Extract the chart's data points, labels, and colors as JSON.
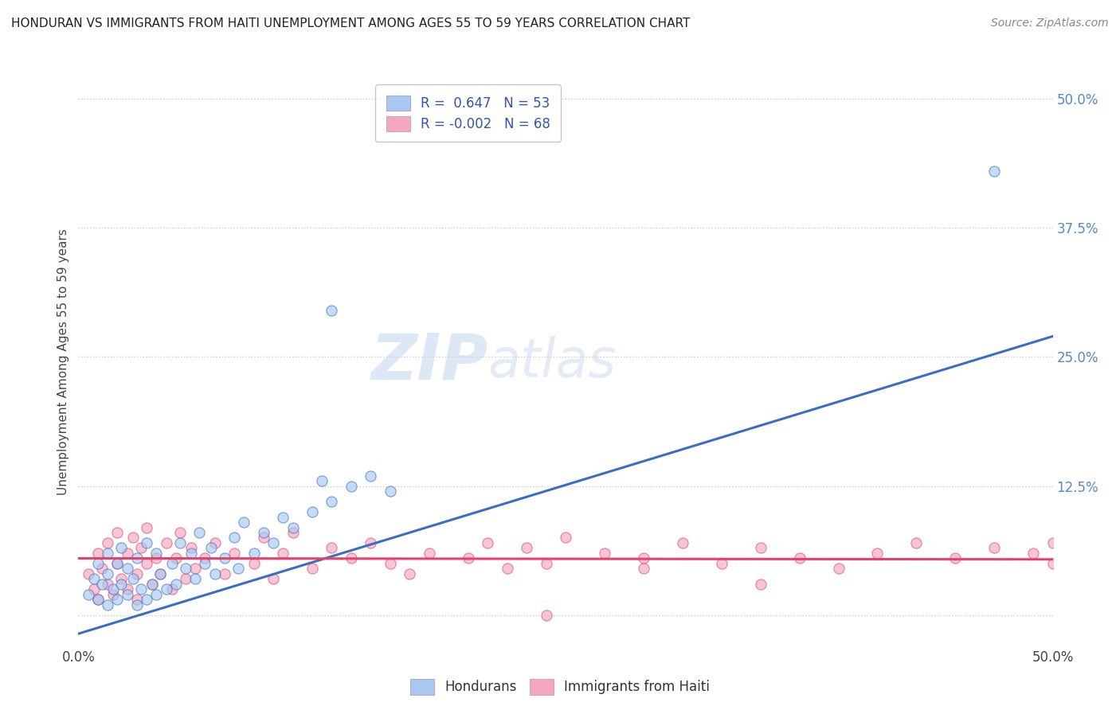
{
  "title": "HONDURAN VS IMMIGRANTS FROM HAITI UNEMPLOYMENT AMONG AGES 55 TO 59 YEARS CORRELATION CHART",
  "source": "Source: ZipAtlas.com",
  "ylabel": "Unemployment Among Ages 55 to 59 years",
  "xlim": [
    0.0,
    0.5
  ],
  "ylim": [
    -0.03,
    0.52
  ],
  "xticks": [
    0.0,
    0.125,
    0.25,
    0.375,
    0.5
  ],
  "xticklabels": [
    "0.0%",
    "",
    "",
    "",
    "50.0%"
  ],
  "ytick_positions": [
    0.0,
    0.125,
    0.25,
    0.375,
    0.5
  ],
  "ytick_labels": [
    "",
    "12.5%",
    "25.0%",
    "37.5%",
    "50.0%"
  ],
  "blue_R": 0.647,
  "blue_N": 53,
  "pink_R": -0.002,
  "pink_N": 68,
  "blue_color": "#a8c8f0",
  "pink_color": "#f4a8c0",
  "blue_line_color": "#3a6ec4",
  "pink_line_color": "#e8406a",
  "blue_line_x": [
    0.0,
    0.5
  ],
  "blue_line_y": [
    -0.018,
    0.27
  ],
  "pink_line_x": [
    0.0,
    0.5
  ],
  "pink_line_y": [
    0.055,
    0.054
  ],
  "background_color": "#ffffff",
  "grid_color": "#cccccc",
  "blue_scatter_x": [
    0.005,
    0.008,
    0.01,
    0.01,
    0.012,
    0.015,
    0.015,
    0.015,
    0.018,
    0.02,
    0.02,
    0.022,
    0.022,
    0.025,
    0.025,
    0.028,
    0.03,
    0.03,
    0.032,
    0.035,
    0.035,
    0.038,
    0.04,
    0.04,
    0.042,
    0.045,
    0.048,
    0.05,
    0.052,
    0.055,
    0.058,
    0.06,
    0.062,
    0.065,
    0.068,
    0.07,
    0.075,
    0.08,
    0.082,
    0.085,
    0.09,
    0.095,
    0.1,
    0.105,
    0.11,
    0.12,
    0.125,
    0.13,
    0.14,
    0.15,
    0.16,
    0.47,
    0.13
  ],
  "blue_scatter_y": [
    0.02,
    0.035,
    0.015,
    0.05,
    0.03,
    0.01,
    0.04,
    0.06,
    0.025,
    0.015,
    0.05,
    0.03,
    0.065,
    0.02,
    0.045,
    0.035,
    0.01,
    0.055,
    0.025,
    0.015,
    0.07,
    0.03,
    0.02,
    0.06,
    0.04,
    0.025,
    0.05,
    0.03,
    0.07,
    0.045,
    0.06,
    0.035,
    0.08,
    0.05,
    0.065,
    0.04,
    0.055,
    0.075,
    0.045,
    0.09,
    0.06,
    0.08,
    0.07,
    0.095,
    0.085,
    0.1,
    0.13,
    0.11,
    0.125,
    0.135,
    0.12,
    0.43,
    0.295
  ],
  "pink_scatter_x": [
    0.005,
    0.008,
    0.01,
    0.01,
    0.012,
    0.015,
    0.015,
    0.018,
    0.02,
    0.02,
    0.022,
    0.025,
    0.025,
    0.028,
    0.03,
    0.03,
    0.032,
    0.035,
    0.035,
    0.038,
    0.04,
    0.042,
    0.045,
    0.048,
    0.05,
    0.052,
    0.055,
    0.058,
    0.06,
    0.065,
    0.07,
    0.075,
    0.08,
    0.09,
    0.095,
    0.1,
    0.105,
    0.11,
    0.12,
    0.13,
    0.14,
    0.15,
    0.16,
    0.17,
    0.18,
    0.2,
    0.21,
    0.22,
    0.23,
    0.24,
    0.25,
    0.27,
    0.29,
    0.31,
    0.33,
    0.35,
    0.37,
    0.39,
    0.41,
    0.43,
    0.45,
    0.47,
    0.49,
    0.5,
    0.5,
    0.24,
    0.29,
    0.35
  ],
  "pink_scatter_y": [
    0.04,
    0.025,
    0.06,
    0.015,
    0.045,
    0.03,
    0.07,
    0.02,
    0.05,
    0.08,
    0.035,
    0.06,
    0.025,
    0.075,
    0.04,
    0.015,
    0.065,
    0.05,
    0.085,
    0.03,
    0.055,
    0.04,
    0.07,
    0.025,
    0.055,
    0.08,
    0.035,
    0.065,
    0.045,
    0.055,
    0.07,
    0.04,
    0.06,
    0.05,
    0.075,
    0.035,
    0.06,
    0.08,
    0.045,
    0.065,
    0.055,
    0.07,
    0.05,
    0.04,
    0.06,
    0.055,
    0.07,
    0.045,
    0.065,
    0.05,
    0.075,
    0.06,
    0.055,
    0.07,
    0.05,
    0.065,
    0.055,
    0.045,
    0.06,
    0.07,
    0.055,
    0.065,
    0.06,
    0.07,
    0.05,
    0.0,
    0.045,
    0.03
  ]
}
